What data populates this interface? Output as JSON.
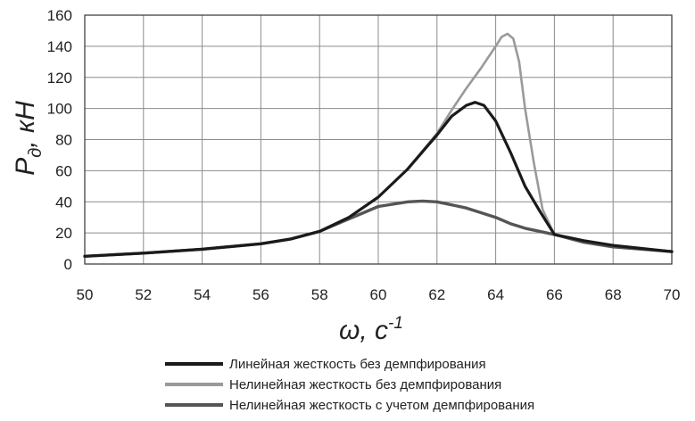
{
  "chart_data": {
    "type": "line",
    "title": "",
    "xlabel": {
      "base": "ω, с",
      "sup": "-1"
    },
    "ylabel": {
      "base": "P",
      "sub": "д",
      "rest": ", кН"
    },
    "xlim": [
      50,
      70
    ],
    "ylim": [
      0,
      160
    ],
    "xticks": [
      "50",
      "52",
      "54",
      "56",
      "58",
      "60",
      "62",
      "64",
      "66",
      "68",
      "70"
    ],
    "yticks": [
      "0",
      "20",
      "40",
      "60",
      "80",
      "100",
      "120",
      "140",
      "160"
    ],
    "grid": true,
    "legend_position": "bottom",
    "series": [
      {
        "name": "Линейная жесткость без демпфирования",
        "color": "#1a1a1a",
        "x": [
          50,
          52,
          54,
          56,
          57,
          58,
          59,
          60,
          61,
          62,
          62.5,
          63,
          63.3,
          63.6,
          64,
          64.5,
          65,
          65.5,
          66,
          67,
          68,
          69,
          70
        ],
        "y": [
          5,
          7,
          9.5,
          13,
          16,
          21,
          30,
          43,
          61,
          83,
          95,
          102,
          104,
          102,
          92,
          72,
          50,
          34,
          19,
          15,
          12,
          10,
          8
        ]
      },
      {
        "name": "Нелинейная жесткость без демпфирования",
        "color": "#9a9a9a",
        "x": [
          50,
          52,
          54,
          56,
          57,
          58,
          59,
          60,
          61,
          62,
          62.5,
          63,
          63.5,
          64,
          64.2,
          64.4,
          64.6,
          64.8,
          65,
          65.3,
          65.6,
          66,
          67,
          68,
          69,
          70
        ],
        "y": [
          5,
          7,
          9.5,
          13,
          16,
          21,
          30,
          43,
          61,
          84,
          99,
          113,
          126,
          140,
          146,
          148,
          145,
          130,
          100,
          65,
          35,
          19,
          15,
          12,
          10,
          8
        ]
      },
      {
        "name": "Нелинейная жесткость с учетом демпфирования",
        "color": "#555555",
        "x": [
          50,
          52,
          54,
          56,
          57,
          58,
          59,
          60,
          61,
          61.5,
          62,
          62.5,
          63,
          63.5,
          64,
          64.5,
          65,
          65.5,
          66,
          67,
          68,
          69,
          70
        ],
        "y": [
          5,
          7,
          9.5,
          13,
          16,
          21,
          29,
          37,
          40,
          40.5,
          40,
          38,
          36,
          33,
          30,
          26,
          23,
          21,
          19,
          14,
          11,
          9.5,
          8
        ]
      }
    ]
  }
}
